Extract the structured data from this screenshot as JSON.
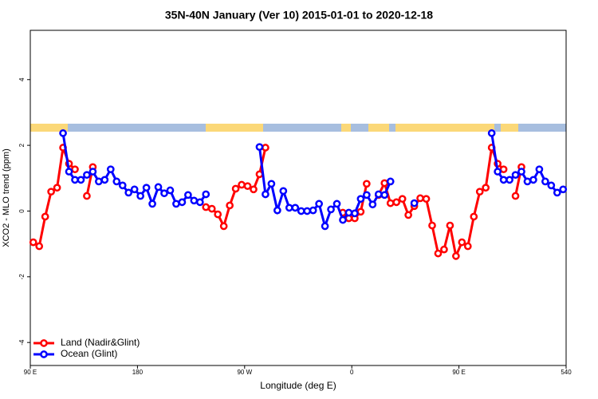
{
  "chart_data": {
    "type": "line",
    "title": "35N-40N January (Ver 10)   2015-01-01 to 2020-12-18",
    "x_label": "Longitude (deg E)",
    "y_label": "XCO2 - MLO trend (ppm)",
    "xlim": [
      90,
      540
    ],
    "xticks": [
      {
        "value": 90,
        "label": "90 E"
      },
      180,
      {
        "value": 270,
        "label": "90 W"
      },
      {
        "value": 360,
        "label": "0"
      },
      {
        "value": 450,
        "label": "90 E"
      },
      540
    ],
    "ylim": [
      -4.7,
      5.5
    ],
    "yticks": [
      -4,
      -2,
      0,
      2,
      4
    ],
    "legend": "bottomleft",
    "x": [
      92.5,
      97.5,
      102.5,
      107.5,
      112.5,
      117.5,
      122.5,
      127.5,
      132.5,
      137.5,
      142.5,
      147.5,
      152.5,
      157.5,
      162.5,
      167.5,
      172.5,
      177.5,
      182.5,
      187.5,
      192.5,
      197.5,
      202.5,
      207.5,
      212.5,
      217.5,
      222.5,
      227.5,
      232.5,
      237.5,
      242.5,
      247.5,
      252.5,
      257.5,
      262.5,
      267.5,
      272.5,
      277.5,
      282.5,
      287.5,
      292.5,
      297.5,
      302.5,
      307.5,
      312.5,
      317.5,
      322.5,
      327.5,
      332.5,
      337.5,
      342.5,
      347.5,
      352.5,
      357.5,
      362.5,
      367.5,
      372.5,
      377.5,
      382.5,
      387.5,
      392.5,
      397.5,
      402.5,
      407.5,
      412.5,
      417.5,
      422.5,
      427.5,
      432.5,
      437.5,
      442.5,
      447.5,
      452.5,
      457.5,
      462.5,
      467.5,
      472.5,
      477.5,
      482.5,
      487.5,
      492.5,
      497.5,
      502.5,
      507.5,
      512.5,
      517.5,
      522.5,
      527.5,
      532.5,
      537.5
    ],
    "series": [
      {
        "name": "Land (Nadir&Glint)",
        "color": "#ff0000",
        "values": [
          -0.95,
          -1.07,
          -0.17,
          0.59,
          0.71,
          1.93,
          1.44,
          1.27,
          null,
          0.46,
          1.34,
          null,
          null,
          null,
          null,
          null,
          null,
          null,
          null,
          null,
          null,
          null,
          null,
          null,
          null,
          null,
          null,
          null,
          null,
          0.12,
          0.07,
          -0.1,
          -0.46,
          0.17,
          0.68,
          0.8,
          0.76,
          0.66,
          1.12,
          1.93,
          null,
          null,
          null,
          null,
          null,
          null,
          null,
          null,
          null,
          null,
          null,
          null,
          -0.05,
          -0.22,
          -0.22,
          -0.02,
          0.83,
          null,
          0.49,
          0.85,
          0.24,
          0.27,
          0.37,
          -0.12,
          0.15,
          0.39,
          0.37,
          -0.44,
          -1.29,
          -1.17,
          -0.44,
          -1.37,
          -0.95,
          -1.07,
          -0.17,
          0.59,
          0.71,
          1.93,
          1.44,
          1.27,
          null,
          0.46,
          1.34,
          null,
          null,
          null,
          null,
          null,
          null,
          null
        ]
      },
      {
        "name": "Ocean (Glint)",
        "color": "#0000ff",
        "values": [
          null,
          null,
          null,
          null,
          null,
          2.37,
          1.2,
          0.95,
          0.95,
          1.1,
          1.2,
          0.9,
          0.95,
          1.27,
          0.9,
          0.78,
          0.56,
          0.66,
          0.46,
          0.71,
          0.22,
          0.73,
          0.54,
          0.63,
          0.22,
          0.27,
          0.49,
          0.32,
          0.27,
          0.51,
          null,
          null,
          null,
          null,
          null,
          null,
          null,
          null,
          1.95,
          0.51,
          0.83,
          0.02,
          0.61,
          0.1,
          0.1,
          0.0,
          0.0,
          0.02,
          0.22,
          -0.46,
          0.05,
          0.22,
          -0.27,
          -0.05,
          -0.07,
          0.37,
          0.49,
          0.2,
          0.51,
          0.49,
          0.9,
          null,
          null,
          null,
          0.24,
          null,
          null,
          null,
          null,
          null,
          null,
          null,
          null,
          null,
          null,
          null,
          null,
          2.37,
          1.2,
          0.95,
          0.95,
          1.1,
          1.2,
          0.9,
          0.95,
          1.27,
          0.9,
          0.78,
          0.56,
          0.66
        ]
      }
    ]
  }
}
